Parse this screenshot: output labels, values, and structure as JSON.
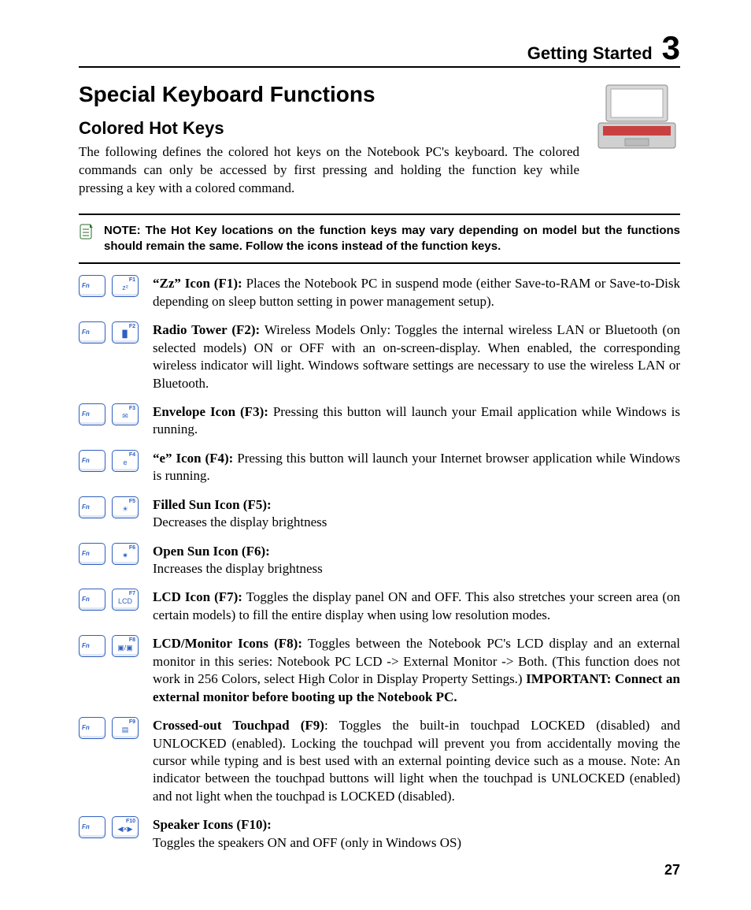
{
  "header": {
    "section": "Getting Started",
    "chapter": "3"
  },
  "titles": {
    "h1": "Special Keyboard Functions",
    "h2": "Colored Hot Keys"
  },
  "intro": "The following defines the colored hot keys on the Notebook PC's keyboard. The colored commands can only be accessed by first pressing and holding the function key while pressing a key with a colored command.",
  "note": "NOTE: The Hot Key locations on the function keys may vary depending on model but the functions should remain the same. Follow the icons instead of the function keys.",
  "fn_label": "Fn",
  "hotkeys": [
    {
      "key": "F1",
      "glyph": "z²",
      "lead": "“Zz” Icon (F1):",
      "body": " Places the Notebook PC in suspend mode (either Save-to-RAM or Save-to-Disk depending on sleep button setting in power management setup).",
      "trail": ""
    },
    {
      "key": "F2",
      "glyph": "▉",
      "lead": "Radio Tower (F2):",
      "body": " Wireless Models Only: Toggles the internal wireless LAN or Bluetooth (on selected models) ON or OFF with an on-screen-display. When enabled, the corresponding wireless indicator will light. Windows software settings are necessary to use the wireless LAN or Bluetooth.",
      "trail": ""
    },
    {
      "key": "F3",
      "glyph": "✉",
      "lead": "Envelope Icon (F3):",
      "body": " Pressing this button will launch your Email application while Windows is running.",
      "trail": ""
    },
    {
      "key": "F4",
      "glyph": "e",
      "lead": "“e” Icon (F4):",
      "body": " Pressing this button will launch your Internet browser application while Windows is running.",
      "trail": ""
    },
    {
      "key": "F5",
      "glyph": "☀",
      "lead": "Filled Sun Icon (F5):",
      "body": "\nDecreases the display brightness",
      "trail": ""
    },
    {
      "key": "F6",
      "glyph": "✷",
      "lead": "Open Sun Icon (F6):",
      "body": "\nIncreases the display brightness",
      "trail": ""
    },
    {
      "key": "F7",
      "glyph": "LCD",
      "lead": "LCD Icon (F7):",
      "body": " Toggles the display panel ON and OFF. This also stretches your screen area (on certain models) to fill the entire display when using low resolution modes.",
      "trail": ""
    },
    {
      "key": "F8",
      "glyph": "▣/▣",
      "lead": "LCD/Monitor Icons (F8):",
      "body": " Toggles between the Notebook PC's LCD display and an external monitor in this series: Notebook PC LCD -> External Monitor -> Both. (This function does not work in 256 Colors, select High Color in Display Property Settings.) ",
      "trail": "IMPORTANT: Connect an external monitor before booting up the Notebook PC."
    },
    {
      "key": "F9",
      "glyph": "▤",
      "lead": "Crossed-out Touchpad (F9)",
      "body": ": Toggles the built-in touchpad LOCKED (disabled) and UNLOCKED (enabled). Locking the touchpad will prevent you from accidentally moving the cursor while typing and is best used with an external pointing device such as a mouse. Note: An indicator between the touchpad buttons will light when the touchpad is UNLOCKED (enabled) and not light when the touchpad is LOCKED (disabled).",
      "trail": ""
    },
    {
      "key": "F10",
      "glyph": "◀×▶",
      "lead": "Speaker Icons (F10):",
      "body": "\nToggles the speakers ON and OFF (only in Windows OS)",
      "trail": ""
    }
  ],
  "page": "27",
  "colors": {
    "key_border": "#3060c0",
    "text": "#000000",
    "bg": "#ffffff"
  }
}
